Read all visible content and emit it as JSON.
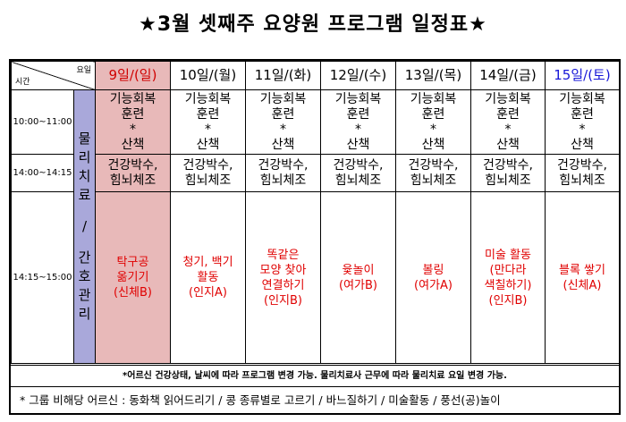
{
  "title": "★3월 셋째주 요양원 프로그램 일정표★",
  "corner": {
    "day_label": "요일",
    "time_label": "시간"
  },
  "days": [
    {
      "label": "9일/(일)"
    },
    {
      "label": "10일/(월)"
    },
    {
      "label": "11일/(화)"
    },
    {
      "label": "12일/(수)"
    },
    {
      "label": "13일/(목)"
    },
    {
      "label": "14일/(금)"
    },
    {
      "label": "15일/(토)"
    }
  ],
  "times": [
    "10:00~11:00",
    "14:00~14:15",
    "14:15~15:00"
  ],
  "category": {
    "top": [
      "물",
      "리",
      "치",
      "료"
    ],
    "divider": "/",
    "bottom": [
      "간",
      "호",
      "관",
      "리"
    ]
  },
  "row1": [
    "기능회복",
    "훈련",
    "*",
    "산책"
  ],
  "row2": [
    "건강박수,",
    "힘뇌체조"
  ],
  "row3": [
    [
      "탁구공",
      "옮기기",
      "(신체B)"
    ],
    [
      "청기, 백기",
      "활동",
      "(인지A)"
    ],
    [
      "똑같은",
      "모양 찾아",
      "연결하기",
      "(인지B)"
    ],
    [
      "윷놀이",
      "(여가B)"
    ],
    [
      "볼링",
      "(여가A)"
    ],
    [
      "미술 활동",
      "(만다라",
      "색칠하기)",
      "(인지B)"
    ],
    [
      "블록 쌓기",
      "(신체A)"
    ]
  ],
  "note1": "*어르신 건강상태, 날씨에 따라 프로그램 변경 가능. 물리치료사 근무에 따라 물리치료 요일 변경 가능.",
  "note2": "* 그룹 비해당 어르신 : 동화책 읽어드리기 / 콩 종류별로 고르기 / 바느질하기 / 미술활동 / 풍선(공)놀이"
}
